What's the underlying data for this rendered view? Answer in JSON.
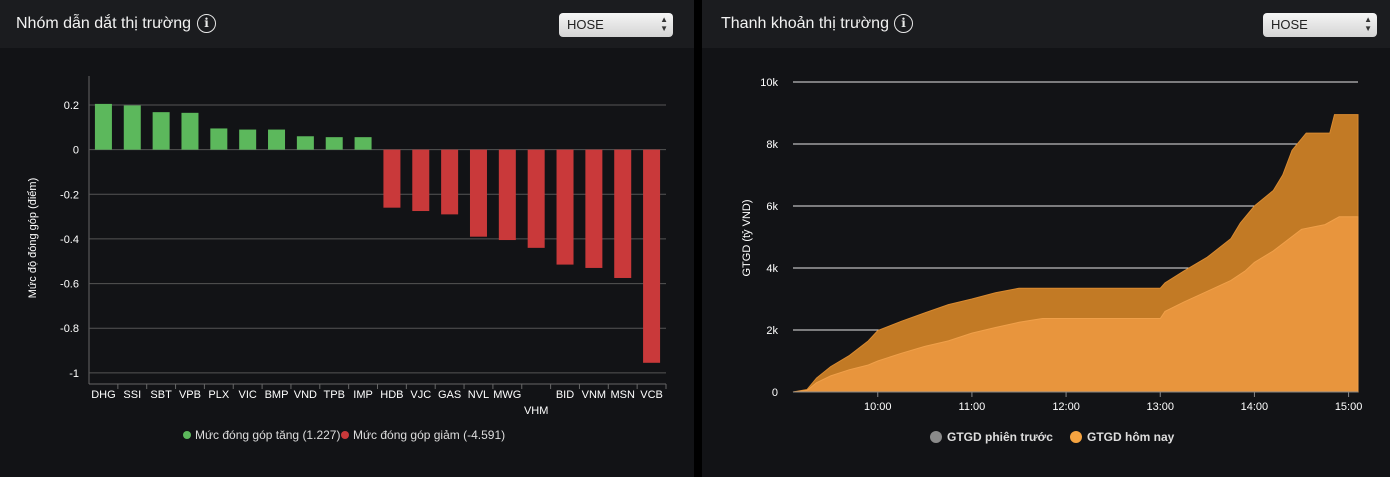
{
  "left_panel": {
    "title": "Nhóm dẫn dắt thị trường",
    "exchange": "HOSE",
    "chart_data": {
      "type": "bar",
      "title": "Nhóm dẫn dắt thị trường",
      "ylabel": "Mức độ đóng góp (điểm)",
      "xlabel": "",
      "ylim": [
        -1.05,
        0.33
      ],
      "yticks": [
        0.2,
        0,
        -0.2,
        -0.4,
        -0.6,
        -0.8,
        -1
      ],
      "ytick_labels": [
        "0.2",
        "0",
        "-0.2",
        "-0.4",
        "-0.6",
        "-0.8",
        "-1"
      ],
      "categories": [
        "DHG",
        "SSI",
        "SBT",
        "VPB",
        "PLX",
        "VIC",
        "BMP",
        "VND",
        "TPB",
        "IMP",
        "HDB",
        "VJC",
        "GAS",
        "NVL",
        "MWG",
        "VHM",
        "BID",
        "VNM",
        "MSN",
        "VCB"
      ],
      "values": [
        0.205,
        0.198,
        0.168,
        0.165,
        0.095,
        0.09,
        0.09,
        0.06,
        0.056,
        0.056,
        -0.26,
        -0.275,
        -0.29,
        -0.39,
        -0.405,
        -0.44,
        -0.515,
        -0.53,
        -0.575,
        -0.955
      ],
      "legend": [
        {
          "label": "Mức đóng góp tăng (1.227)",
          "color": "#5cb85c"
        },
        {
          "label": "Mức đóng góp giảm (-4.591)",
          "color": "#c9393a"
        }
      ],
      "legend_position": "bottom-center",
      "grid": true
    }
  },
  "right_panel": {
    "title": "Thanh khoản thị trường",
    "exchange": "HOSE",
    "chart_data": {
      "type": "area",
      "title": "Thanh khoản thị trường",
      "ylabel": "GTGD (tỷ VND)",
      "xlabel": "",
      "ylim": [
        0,
        10000
      ],
      "yticks": [
        0,
        2000,
        4000,
        6000,
        8000,
        10000
      ],
      "ytick_labels": [
        "0",
        "2k",
        "4k",
        "6k",
        "8k",
        "10k"
      ],
      "xlim": [
        9.1,
        15.1
      ],
      "xticks": [
        10,
        11,
        12,
        13,
        14,
        15
      ],
      "xtick_labels": [
        "10:00",
        "11:00",
        "12:00",
        "13:00",
        "14:00",
        "15:00"
      ],
      "grid": true,
      "legend_position": "bottom-center",
      "series": [
        {
          "name": "GTGD phiên trước",
          "color": "#8a8a8a",
          "x": [
            9.1,
            9.25,
            9.35,
            9.5,
            9.7,
            9.9,
            10.0,
            10.25,
            10.5,
            10.75,
            11.0,
            11.25,
            11.5,
            11.75,
            12.0,
            12.5,
            13.0,
            13.05,
            13.25,
            13.5,
            13.75,
            13.9,
            14.0,
            14.2,
            14.35,
            14.5,
            14.75,
            14.9,
            15.1
          ],
          "values": [
            0,
            50,
            300,
            520,
            720,
            870,
            1000,
            1250,
            1470,
            1650,
            1900,
            2080,
            2250,
            2370,
            2370,
            2370,
            2370,
            2600,
            2900,
            3250,
            3600,
            3900,
            4180,
            4550,
            4900,
            5250,
            5400,
            5650,
            5650
          ]
        },
        {
          "name": "GTGD hôm nay",
          "color": "#f5a340",
          "x": [
            9.1,
            9.25,
            9.35,
            9.5,
            9.7,
            9.9,
            10.0,
            10.25,
            10.5,
            10.75,
            11.0,
            11.25,
            11.5,
            11.75,
            12.0,
            12.5,
            13.0,
            13.05,
            13.25,
            13.5,
            13.75,
            13.85,
            14.0,
            14.2,
            14.3,
            14.4,
            14.55,
            14.65,
            14.8,
            14.85,
            15.1
          ],
          "values": [
            0,
            80,
            450,
            820,
            1180,
            1650,
            1980,
            2280,
            2550,
            2820,
            3000,
            3200,
            3350,
            3350,
            3350,
            3350,
            3350,
            3520,
            3900,
            4350,
            4950,
            5450,
            6000,
            6500,
            7000,
            7800,
            8350,
            8350,
            8350,
            8950,
            8950
          ]
        }
      ]
    }
  }
}
